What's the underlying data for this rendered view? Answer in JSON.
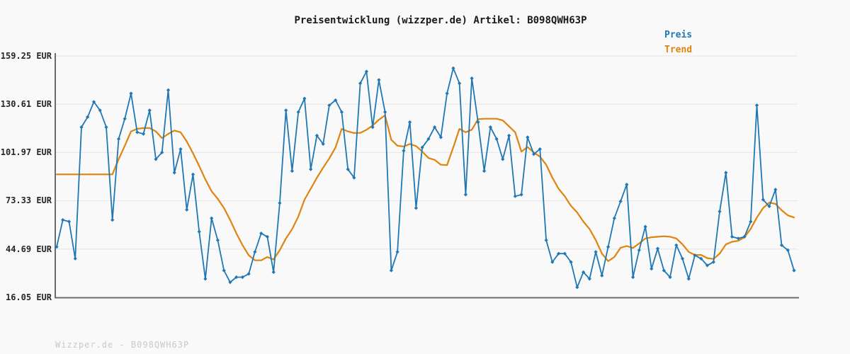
{
  "title": "Preisentwicklung (wizzper.de) Artikel: B098QWH63P",
  "legend": {
    "price_label": "Preis",
    "trend_label": "Trend"
  },
  "watermark": "Wizzper.de - B098QWH63P",
  "colors": {
    "price": "#1f77b4",
    "trend": "#e0830e",
    "grid": "#e9e9e9",
    "axis": "#6b6b6b",
    "title_text": "#1a1a1a",
    "tick_text": "#262626",
    "watermark_text": "#c9c9c9",
    "background": "#f9f9f9"
  },
  "chart_data": {
    "type": "line",
    "title": "Preisentwicklung (wizzper.de) Artikel: B098QWH63P",
    "currency": "EUR",
    "y_ticks": [
      "159.25 EUR",
      "130.61 EUR",
      "101.97 EUR",
      "73.33 EUR",
      "44.69 EUR",
      "16.05 EUR"
    ],
    "y_tick_values": [
      159.25,
      130.61,
      101.97,
      73.33,
      44.69,
      16.05
    ],
    "ylim": [
      16.05,
      159.25
    ],
    "x_labels_visible": false,
    "n_points": 120,
    "grid": "horizontal",
    "legend_position": "top-right",
    "series": [
      {
        "name": "Preis",
        "color": "#1f77b4",
        "marker": "diamond",
        "values": [
          46,
          62,
          61,
          39,
          117,
          123,
          132,
          127,
          117,
          62,
          110,
          122,
          137,
          114,
          113,
          127,
          98,
          102,
          139,
          90,
          104,
          68,
          89,
          55,
          27,
          63,
          50,
          32,
          25,
          28,
          28,
          30,
          43,
          54,
          52,
          31,
          72,
          127,
          91,
          126,
          134,
          92,
          112,
          107,
          130,
          133,
          126,
          92,
          87,
          143,
          150,
          117,
          145,
          126,
          32,
          43,
          103,
          120,
          69,
          105,
          110,
          117,
          111,
          137,
          152,
          143,
          77,
          146,
          120,
          91,
          117,
          110,
          98,
          112,
          76,
          77,
          111,
          101,
          104,
          50,
          37,
          42,
          42,
          37,
          22,
          31,
          27,
          43,
          29,
          46,
          63,
          73,
          83,
          28,
          44,
          58,
          33,
          45,
          32,
          28,
          47,
          39,
          27,
          41,
          39,
          35,
          37,
          67,
          90,
          52,
          51,
          52,
          61,
          130,
          74,
          70,
          80,
          47,
          44,
          32
        ]
      },
      {
        "name": "Trend",
        "color": "#e0830e",
        "marker": "none",
        "values": [
          89,
          89,
          89,
          89,
          89,
          89,
          89,
          89,
          89,
          89,
          98,
          106,
          114.5,
          116,
          116.5,
          116.5,
          114.5,
          110.5,
          113,
          115,
          114,
          108.5,
          101.5,
          94,
          86,
          79,
          74.5,
          69,
          62,
          54,
          47,
          41,
          38,
          38,
          40,
          38.5,
          44,
          51,
          56.5,
          64,
          74,
          80.5,
          87,
          93,
          98.5,
          105,
          116,
          114.5,
          113.5,
          113.6,
          115.4,
          118,
          121.4,
          124,
          109.5,
          106,
          105.5,
          107,
          105.8,
          102.5,
          98.7,
          97.6,
          94.7,
          94.5,
          105,
          116,
          114,
          115.5,
          121.7,
          122,
          122,
          122,
          121,
          117.5,
          114,
          102.5,
          105.2,
          102,
          99.5,
          94.7,
          87,
          80.5,
          76,
          70.3,
          66.4,
          61,
          56.6,
          50,
          42,
          37.5,
          40,
          45.5,
          46.5,
          45.3,
          48,
          51,
          51.7,
          52,
          52.3,
          52,
          51,
          47.5,
          43,
          41.2,
          41.2,
          39.3,
          38.8,
          42,
          47.5,
          49,
          49.6,
          51.7,
          56.7,
          63.4,
          69,
          72.3,
          71.5,
          67.7,
          64.7,
          63.4
        ]
      }
    ]
  }
}
